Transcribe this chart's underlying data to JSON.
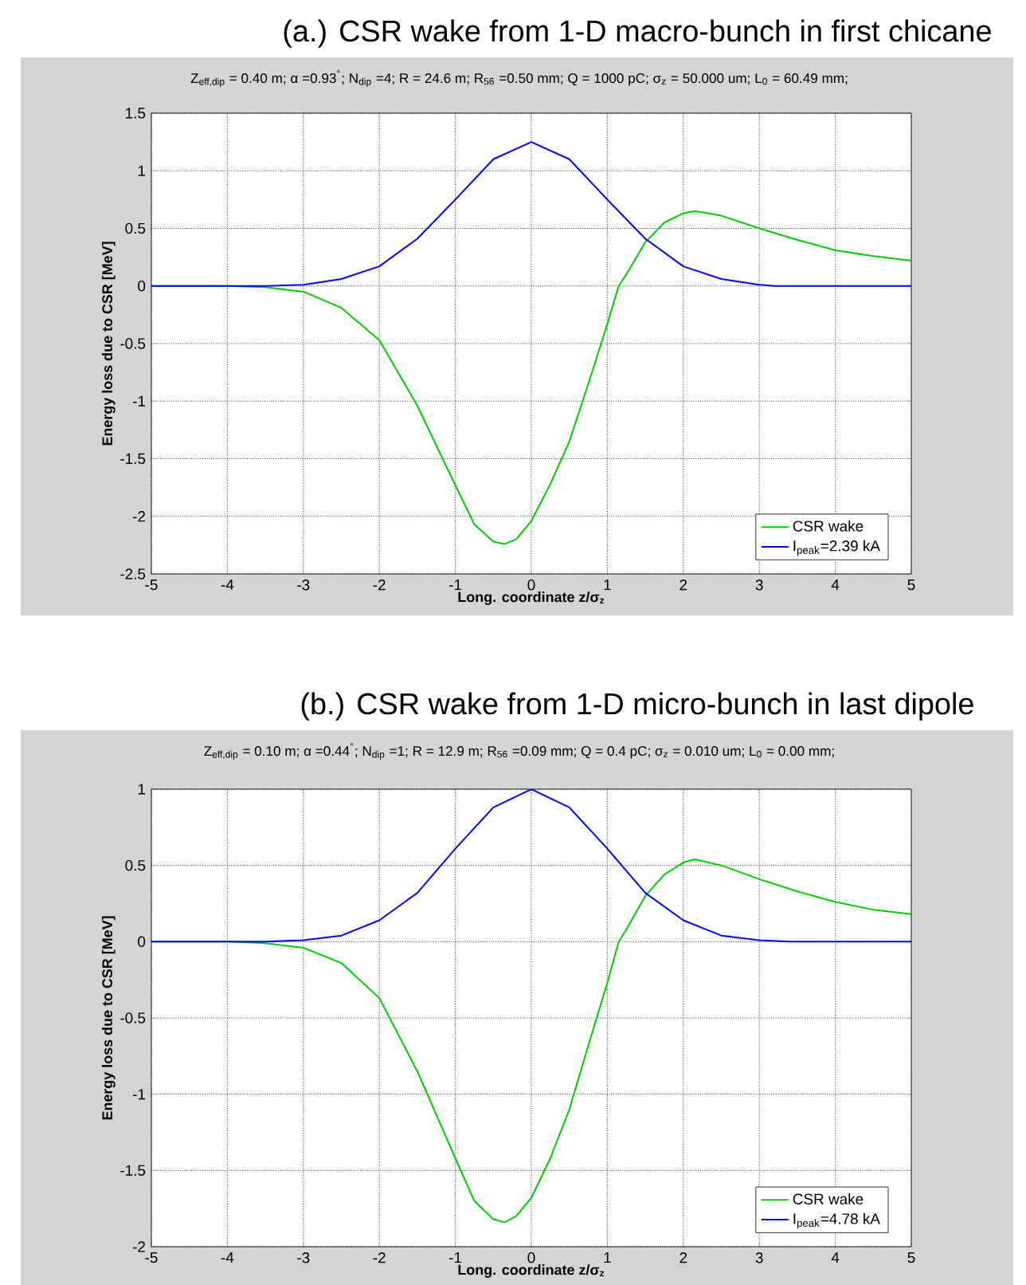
{
  "chart_data": [
    {
      "type": "line",
      "title": "(a.)  CSR wake from 1-D macro-bunch in first chicane",
      "subtitle": "Z$_{eff,dip}$ = 0.40 m; α =0.93$^{°}$; N$_{dip}$ =4; R = 24.6 m; R$_{56}$ =0.50 mm; Q = 1000 pC; σ$_{z}$ = 50.000 um; L$_{0}$ = 60.49 mm;",
      "xlabel": "Long. coordinate z/σ$_{z}$",
      "ylabel": "Energy loss due to CSR [MeV]",
      "xlim": [
        -5,
        5
      ],
      "ylim": [
        -2.5,
        1.5
      ],
      "xticks": [
        -5,
        -4,
        -3,
        -2,
        -1,
        0,
        1,
        2,
        3,
        4,
        5
      ],
      "yticks": [
        -2.5,
        -2,
        -1.5,
        -1,
        -0.5,
        0,
        0.5,
        1,
        1.5
      ],
      "grid": true,
      "legend": "bottom right",
      "line_style": "solid",
      "series": [
        {
          "name": "CSR wake",
          "color": "#00cc00",
          "x": [
            -5,
            -4,
            -3.5,
            -3,
            -2.5,
            -2,
            -1.5,
            -1,
            -0.75,
            -0.5,
            -0.35,
            -0.2,
            0,
            0.25,
            0.5,
            0.75,
            1,
            1.15,
            1.25,
            1.5,
            1.75,
            2,
            2.15,
            2.5,
            3,
            3.5,
            4,
            4.5,
            5
          ],
          "values": [
            0,
            0,
            -0.01,
            -0.05,
            -0.19,
            -0.47,
            -1.04,
            -1.73,
            -2.07,
            -2.22,
            -2.24,
            -2.2,
            -2.04,
            -1.72,
            -1.35,
            -0.85,
            -0.33,
            0,
            0.1,
            0.38,
            0.55,
            0.63,
            0.65,
            0.61,
            0.5,
            0.4,
            0.31,
            0.26,
            0.22
          ]
        },
        {
          "name": "I$_{peak}$=2.39 kA",
          "color": "#0000ff",
          "x": [
            -5,
            -3.5,
            -3,
            -2.5,
            -2,
            -1.5,
            -1,
            -0.5,
            0,
            0.5,
            1,
            1.5,
            2,
            2.5,
            3,
            3.2,
            5
          ],
          "values": [
            0,
            0,
            0.01,
            0.06,
            0.17,
            0.41,
            0.75,
            1.1,
            1.25,
            1.1,
            0.75,
            0.41,
            0.17,
            0.06,
            0.01,
            0,
            0
          ]
        }
      ]
    },
    {
      "type": "line",
      "title": "(b.)  CSR wake from 1-D micro-bunch in last dipole",
      "subtitle": "Z$_{eff,dip}$ = 0.10 m; α =0.44$^{°}$; N$_{dip}$ =1; R = 12.9 m; R$_{56}$ =0.09 mm; Q = 0.4 pC; σ$_{z}$ = 0.010 um; L$_{0}$ = 0.00 mm;",
      "xlabel": "Long. coordinate z/σ$_{z}$",
      "ylabel": "Energy loss due to CSR [MeV]",
      "xlim": [
        -5,
        5
      ],
      "ylim": [
        -2,
        1
      ],
      "xticks": [
        -5,
        -4,
        -3,
        -2,
        -1,
        0,
        1,
        2,
        3,
        4,
        5
      ],
      "yticks": [
        -2,
        -1.5,
        -1,
        -0.5,
        0,
        0.5,
        1
      ],
      "grid": true,
      "legend": "bottom right",
      "line_style": "solid",
      "series": [
        {
          "name": "CSR wake",
          "color": "#00cc00",
          "x": [
            -5,
            -4,
            -3.5,
            -3,
            -2.5,
            -2,
            -1.5,
            -1,
            -0.75,
            -0.5,
            -0.35,
            -0.2,
            0,
            0.25,
            0.5,
            0.75,
            1,
            1.15,
            1.25,
            1.5,
            1.75,
            2,
            2.15,
            2.5,
            3,
            3.5,
            4,
            4.5,
            5
          ],
          "values": [
            0,
            0,
            -0.01,
            -0.04,
            -0.14,
            -0.37,
            -0.85,
            -1.42,
            -1.7,
            -1.82,
            -1.84,
            -1.8,
            -1.68,
            -1.42,
            -1.1,
            -0.68,
            -0.27,
            0,
            0.08,
            0.3,
            0.44,
            0.52,
            0.54,
            0.5,
            0.41,
            0.33,
            0.26,
            0.21,
            0.18
          ]
        },
        {
          "name": "I$_{peak}$=4.78 kA",
          "color": "#0000ff",
          "x": [
            -5,
            -3.5,
            -3,
            -2.5,
            -2,
            -1.5,
            -1,
            -0.5,
            0,
            0.5,
            1,
            1.5,
            2,
            2.5,
            3,
            3.4,
            5
          ],
          "values": [
            0,
            0,
            0.01,
            0.04,
            0.14,
            0.32,
            0.61,
            0.88,
            1,
            0.88,
            0.61,
            0.32,
            0.14,
            0.04,
            0.01,
            0,
            0
          ]
        }
      ]
    }
  ]
}
